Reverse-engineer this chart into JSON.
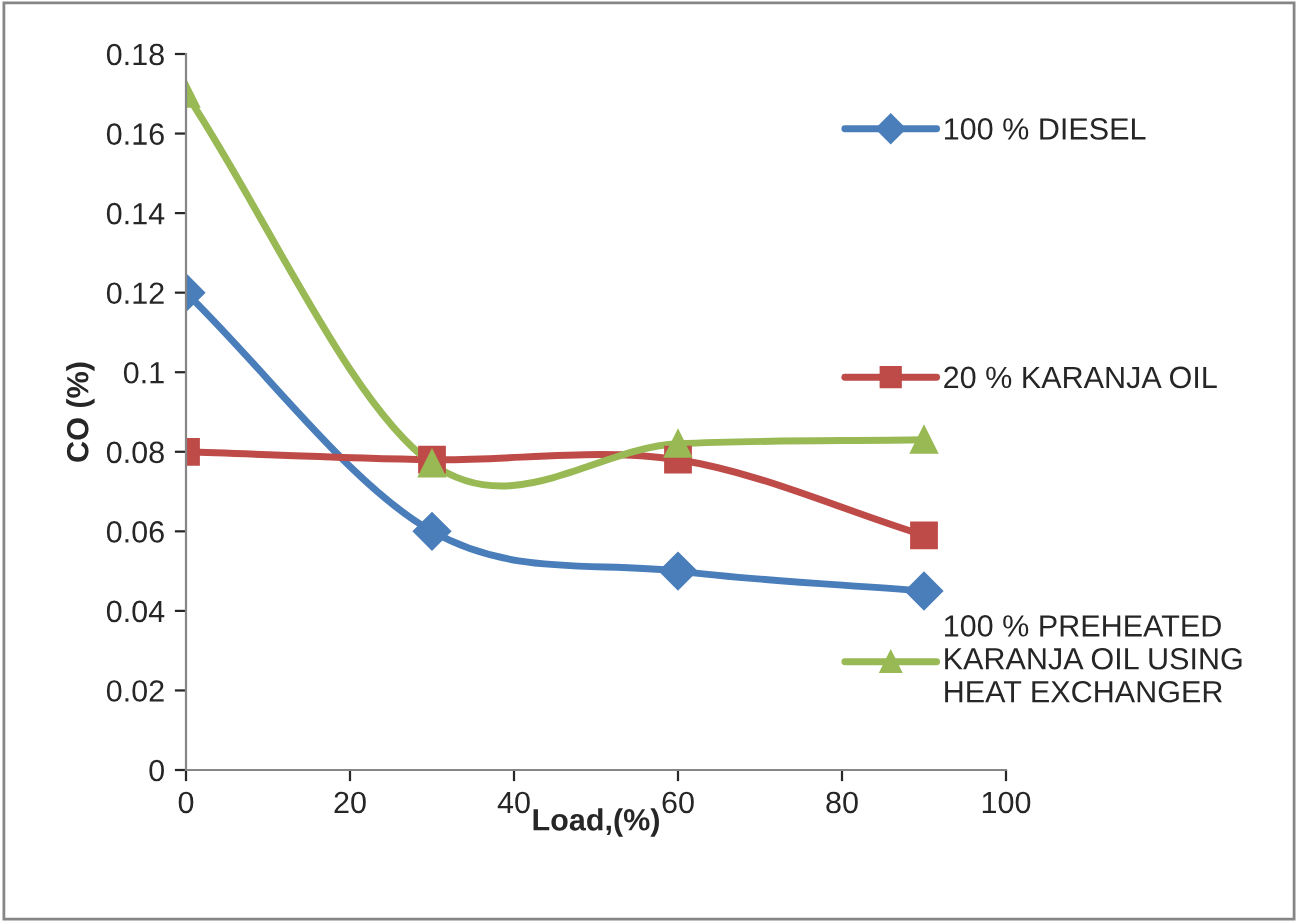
{
  "chart_data": {
    "type": "line",
    "xlabel": "Load,(%)",
    "ylabel": "CO (%)",
    "x": [
      0,
      30,
      60,
      90
    ],
    "series": [
      {
        "name": "100 % DIESEL",
        "color": "#4a7ebb",
        "marker": "diamond",
        "values": [
          0.12,
          0.06,
          0.05,
          0.045
        ]
      },
      {
        "name": "20 % KARANJA OIL",
        "color": "#be4b48",
        "marker": "square",
        "values": [
          0.08,
          0.078,
          0.078,
          0.059
        ]
      },
      {
        "name": "100 % PREHEATED\nKARANJA OIL USING\nHEAT EXCHANGER",
        "color": "#98b954",
        "marker": "triangle",
        "values": [
          0.17,
          0.077,
          0.082,
          0.083
        ]
      }
    ],
    "xlim": [
      0,
      100
    ],
    "xticks": [
      0,
      20,
      40,
      60,
      80,
      100
    ],
    "ylim": [
      0,
      0.18
    ],
    "yticks": [
      0,
      0.02,
      0.04,
      0.06,
      0.08,
      0.1,
      0.12,
      0.14,
      0.16,
      0.18
    ],
    "grid": false,
    "legend": "right",
    "line_style": "solid"
  }
}
